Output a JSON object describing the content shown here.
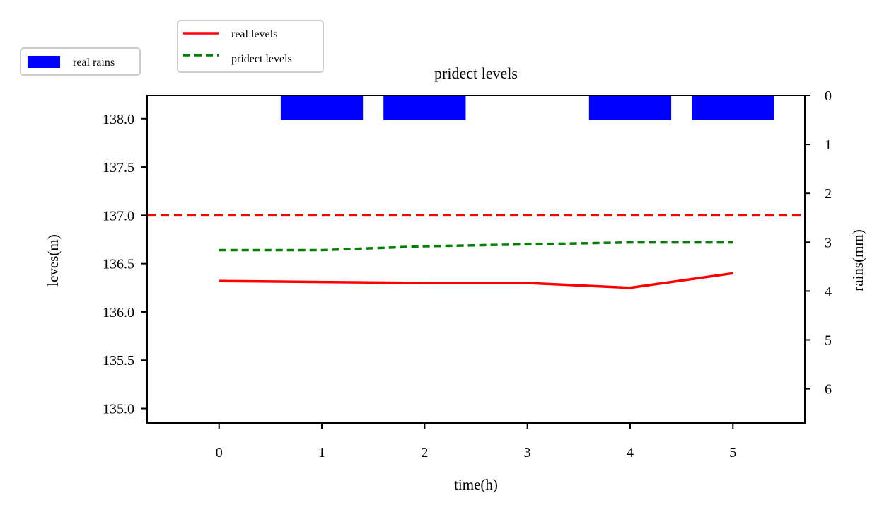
{
  "chart_data": {
    "type": "line",
    "title": "pridect levels",
    "xlabel": "time(h)",
    "ylabel": "leves(m)",
    "y2label": "rains(mm)",
    "x": [
      0,
      1,
      2,
      3,
      4,
      5
    ],
    "xlim": [
      -0.7,
      5.7
    ],
    "ylim": [
      134.85,
      138.24
    ],
    "y2lim": [
      6.7,
      0
    ],
    "y2_inverted": true,
    "x_ticks": [
      "0",
      "1",
      "2",
      "3",
      "4",
      "5"
    ],
    "y_ticks": [
      "135.0",
      "135.5",
      "136.0",
      "136.5",
      "137.0",
      "137.5",
      "138.0"
    ],
    "y2_ticks": [
      "0",
      "1",
      "2",
      "3",
      "4",
      "5",
      "6"
    ],
    "series": [
      {
        "name": "real levels",
        "color": "#ff0000",
        "style": "solid",
        "values": [
          136.32,
          136.31,
          136.3,
          136.3,
          136.25,
          136.4
        ]
      },
      {
        "name": "pridect levels",
        "color": "#008000",
        "style": "dashed",
        "values": [
          136.64,
          136.64,
          136.68,
          136.7,
          136.72,
          136.72
        ]
      }
    ],
    "threshold": {
      "value": 137.0,
      "color": "#ff0000",
      "style": "dashed"
    },
    "rain_bars": {
      "name": "real rains",
      "color": "#0000ff",
      "x": [
        1,
        2,
        4,
        5
      ],
      "values": [
        0.5,
        0.5,
        0.5,
        0.5
      ],
      "width": 0.8
    },
    "grid": false,
    "legend_rain": {
      "position": "top-left",
      "label": "real rains"
    },
    "legend_lines": {
      "position": "top-left",
      "labels": [
        "real levels",
        "pridect levels"
      ]
    }
  }
}
